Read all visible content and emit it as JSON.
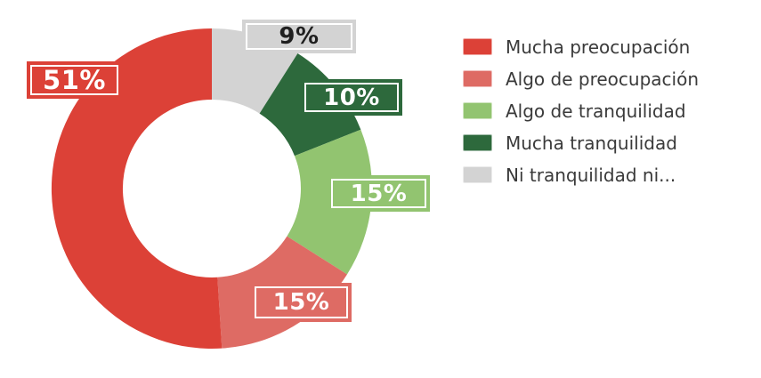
{
  "canvas": {
    "background": "#FFFFFF"
  },
  "chart_data": {
    "type": "pie",
    "subtype": "donut",
    "title": "",
    "legend_position": "right",
    "grid": false,
    "slices": [
      {
        "label": "Mucha preocupación",
        "value": 51,
        "pct_label": "51%",
        "color": "#DC4137",
        "label_text_color": "#FFFFFF"
      },
      {
        "label": "Algo de preocupación",
        "value": 15,
        "pct_label": "15%",
        "color": "#DE6B64",
        "label_text_color": "#FFFFFF"
      },
      {
        "label": "Algo de tranquilidad",
        "value": 15,
        "pct_label": "15%",
        "color": "#92C470",
        "label_text_color": "#FFFFFF"
      },
      {
        "label": "Mucha tranquilidad",
        "value": 10,
        "pct_label": "10%",
        "color": "#2D693C",
        "label_text_color": "#FFFFFF"
      },
      {
        "label": "Ni tranquilidad ni...",
        "value": 9,
        "pct_label": "9%",
        "color": "#D3D3D3",
        "label_text_color": "#1F1F1F"
      }
    ],
    "draw_order_clockwise_from_top": [
      4,
      3,
      2,
      1,
      0
    ],
    "label_box_border_color": "#FFFFFF",
    "legend_text_color": "#3A3A3A"
  }
}
